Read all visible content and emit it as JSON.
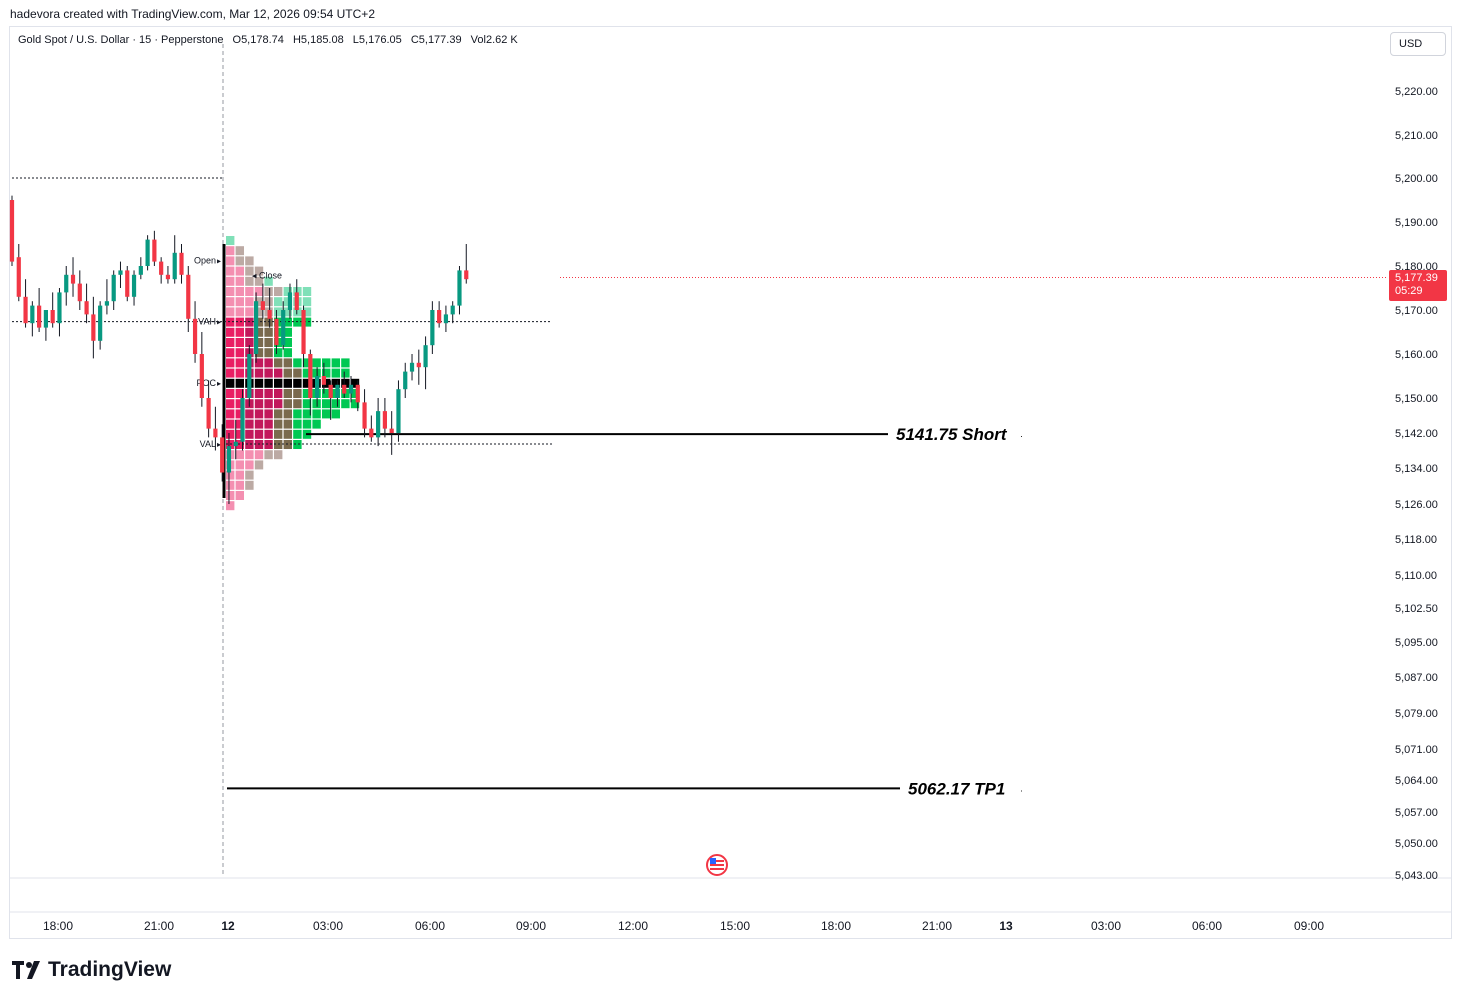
{
  "header": {
    "caption": "hadevora created with TradingView.com, Mar 12, 2026 09:54 UTC+2"
  },
  "legend": {
    "symbol": "Gold Spot / U.S. Dollar · 15 · Pepperstone",
    "o_label": "O",
    "o_value": "5,178.74",
    "h_label": "H",
    "h_value": "5,185.08",
    "l_label": "L",
    "l_value": "5,176.05",
    "c_label": "C",
    "c_value": "5,177.39",
    "vol_label": "Vol",
    "vol_value": "2.62 K"
  },
  "currency": "USD",
  "last_price": {
    "value": "5,177.39",
    "countdown": "05:29"
  },
  "footer": {
    "brand": "TradingView"
  },
  "chart_data": {
    "type": "candlestick",
    "y_ticks": [
      "5,220.00",
      "5,210.00",
      "5,200.00",
      "5,190.00",
      "5,180.00",
      "5,170.00",
      "5,160.00",
      "5,150.00",
      "5,142.00",
      "5,134.00",
      "5,126.00",
      "5,118.00",
      "5,110.00",
      "5,102.50",
      "5,095.00",
      "5,087.00",
      "5,079.00",
      "5,071.00",
      "5,064.00",
      "5,057.00",
      "5,050.00",
      "5,043.00"
    ],
    "x_ticks": [
      "18:00",
      "21:00",
      "12",
      "03:00",
      "06:00",
      "09:00",
      "12:00",
      "15:00",
      "18:00",
      "21:00",
      "13",
      "03:00",
      "06:00",
      "09:00"
    ],
    "last_price": 5177.39,
    "session_high_line": 5200,
    "volume_profile": {
      "labels": [
        "Open",
        "Close",
        "VAH",
        "POC",
        "VAL"
      ],
      "vah": 5169,
      "poc": 5155,
      "val": 5141
    },
    "levels": [
      {
        "label": "5141.75 Short",
        "price": 5141.75
      },
      {
        "label": "5062.17 TP1",
        "price": 5062.17
      }
    ],
    "candles": [
      [
        5195,
        5196,
        5180,
        5181
      ],
      [
        5182,
        5185,
        5172,
        5173
      ],
      [
        5173,
        5177,
        5166,
        5167
      ],
      [
        5167,
        5172,
        5164,
        5171
      ],
      [
        5171,
        5175,
        5165,
        5166
      ],
      [
        5166,
        5170,
        5163,
        5170
      ],
      [
        5170,
        5174,
        5166,
        5167
      ],
      [
        5167,
        5175,
        5164,
        5174
      ],
      [
        5174,
        5180,
        5171,
        5178
      ],
      [
        5178,
        5182,
        5173,
        5176
      ],
      [
        5176,
        5179,
        5170,
        5172
      ],
      [
        5172,
        5176,
        5167,
        5169
      ],
      [
        5169,
        5173,
        5159,
        5163
      ],
      [
        5163,
        5172,
        5161,
        5171
      ],
      [
        5171,
        5177,
        5169,
        5172
      ],
      [
        5172,
        5179,
        5170,
        5178
      ],
      [
        5178,
        5181,
        5175,
        5179
      ],
      [
        5179,
        5180,
        5172,
        5173
      ],
      [
        5173,
        5179,
        5171,
        5178
      ],
      [
        5178,
        5182,
        5177,
        5180
      ],
      [
        5180,
        5187,
        5179,
        5186
      ],
      [
        5186,
        5188,
        5180,
        5181
      ],
      [
        5181,
        5182,
        5176,
        5178
      ],
      [
        5178,
        5180,
        5176,
        5177
      ],
      [
        5177,
        5187,
        5176,
        5183
      ],
      [
        5183,
        5185,
        5176,
        5178
      ],
      [
        5178,
        5180,
        5165,
        5168
      ],
      [
        5168,
        5172,
        5158,
        5160
      ],
      [
        5160,
        5165,
        5148,
        5150
      ],
      [
        5150,
        5154,
        5141,
        5143
      ],
      [
        5143,
        5148,
        5138,
        5141
      ],
      [
        5141,
        5144,
        5131,
        5133
      ],
      [
        5133,
        5142,
        5126,
        5139
      ],
      [
        5139,
        5145,
        5136,
        5140
      ],
      [
        5140,
        5152,
        5138,
        5150
      ],
      [
        5150,
        5162,
        5148,
        5160
      ],
      [
        5160,
        5174,
        5158,
        5172
      ],
      [
        5172,
        5176,
        5168,
        5170
      ],
      [
        5170,
        5175,
        5166,
        5168
      ],
      [
        5168,
        5170,
        5160,
        5162
      ],
      [
        5162,
        5172,
        5161,
        5170
      ],
      [
        5170,
        5176,
        5168,
        5174
      ],
      [
        5174,
        5177,
        5169,
        5170
      ],
      [
        5170,
        5171,
        5157,
        5160
      ],
      [
        5160,
        5161,
        5146,
        5150
      ],
      [
        5150,
        5157,
        5148,
        5155
      ],
      [
        5155,
        5158,
        5151,
        5153
      ],
      [
        5153,
        5154,
        5145,
        5150
      ],
      [
        5150,
        5154,
        5148,
        5153
      ],
      [
        5153,
        5156,
        5150,
        5151
      ],
      [
        5151,
        5155,
        5149,
        5153
      ],
      [
        5153,
        5154,
        5147,
        5149
      ],
      [
        5149,
        5152,
        5141,
        5143
      ],
      [
        5143,
        5146,
        5140,
        5141
      ],
      [
        5141,
        5150,
        5139,
        5147
      ],
      [
        5147,
        5150,
        5141,
        5143
      ],
      [
        5143,
        5147,
        5137,
        5142
      ],
      [
        5142,
        5154,
        5140,
        5152
      ],
      [
        5152,
        5158,
        5150,
        5156
      ],
      [
        5156,
        5160,
        5154,
        5158
      ],
      [
        5158,
        5161,
        5153,
        5157
      ],
      [
        5157,
        5164,
        5152,
        5162
      ],
      [
        5162,
        5172,
        5160,
        5170
      ],
      [
        5170,
        5172,
        5166,
        5167
      ],
      [
        5167,
        5171,
        5165,
        5169
      ],
      [
        5169,
        5172,
        5167,
        5171
      ],
      [
        5171,
        5180,
        5169,
        5179
      ],
      [
        5179,
        5185,
        5176,
        5177
      ]
    ]
  }
}
